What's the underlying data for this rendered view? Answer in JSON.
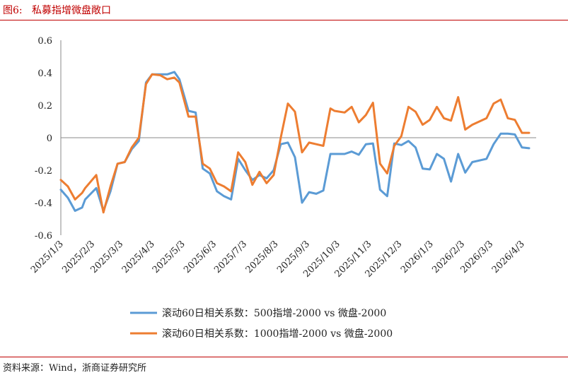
{
  "header": {
    "figure_label": "图6:",
    "title": "私募指增微盘敞口"
  },
  "footer": {
    "source": "资料来源：Wind，浙商证券研究所"
  },
  "chart_data": {
    "type": "line",
    "title": "私募指增微盘敞口",
    "xlabel": "",
    "ylabel": "",
    "ylim": [
      -0.6,
      0.6
    ],
    "yticks": [
      -0.6,
      -0.4,
      -0.2,
      0,
      0.2,
      0.4,
      0.6
    ],
    "ytick_labels": [
      "-0.6",
      "-0.4",
      "-0.2",
      "0",
      "0.2",
      "0.4",
      "0.6"
    ],
    "xtick_labels": [
      "2025/1/3",
      "2025/2/3",
      "2025/3/3",
      "2025/4/3",
      "2025/5/3",
      "2025/6/3",
      "2025/7/3",
      "2025/8/3",
      "2025/9/3",
      "2025/10/3",
      "2025/11/3",
      "2025/12/3",
      "2026/1/3",
      "2026/2/3",
      "2026/3/3",
      "2026/4/3"
    ],
    "x_range": [
      "2025-01-03",
      "2026-04-17"
    ],
    "grid": false,
    "legend_position": "bottom",
    "colors": {
      "series1": "#5b9bd5",
      "series2": "#ed7d31"
    },
    "series": [
      {
        "name": "滚动60日相关系数：500指增-2000 vs 微盘-2000",
        "points": [
          [
            "2025-01-03",
            -0.32
          ],
          [
            "2025-01-10",
            -0.37
          ],
          [
            "2025-01-17",
            -0.45
          ],
          [
            "2025-01-24",
            -0.43
          ],
          [
            "2025-01-27",
            -0.38
          ],
          [
            "2025-02-07",
            -0.31
          ],
          [
            "2025-02-14",
            -0.45
          ],
          [
            "2025-02-21",
            -0.33
          ],
          [
            "2025-02-28",
            -0.16
          ],
          [
            "2025-03-07",
            -0.15
          ],
          [
            "2025-03-14",
            -0.07
          ],
          [
            "2025-03-21",
            -0.02
          ],
          [
            "2025-03-28",
            0.34
          ],
          [
            "2025-04-03",
            0.39
          ],
          [
            "2025-04-11",
            0.39
          ],
          [
            "2025-04-18",
            0.39
          ],
          [
            "2025-04-25",
            0.405
          ],
          [
            "2025-04-30",
            0.36
          ],
          [
            "2025-05-09",
            0.165
          ],
          [
            "2025-05-16",
            0.155
          ],
          [
            "2025-05-23",
            -0.19
          ],
          [
            "2025-05-30",
            -0.22
          ],
          [
            "2025-06-06",
            -0.33
          ],
          [
            "2025-06-13",
            -0.36
          ],
          [
            "2025-06-20",
            -0.38
          ],
          [
            "2025-06-27",
            -0.13
          ],
          [
            "2025-07-04",
            -0.2
          ],
          [
            "2025-07-11",
            -0.26
          ],
          [
            "2025-07-18",
            -0.23
          ],
          [
            "2025-07-25",
            -0.25
          ],
          [
            "2025-08-01",
            -0.2
          ],
          [
            "2025-08-08",
            -0.04
          ],
          [
            "2025-08-15",
            -0.03
          ],
          [
            "2025-08-22",
            -0.12
          ],
          [
            "2025-08-29",
            -0.4
          ],
          [
            "2025-09-05",
            -0.335
          ],
          [
            "2025-09-12",
            -0.345
          ],
          [
            "2025-09-19",
            -0.325
          ],
          [
            "2025-09-26",
            -0.1
          ],
          [
            "2025-09-30",
            -0.1
          ],
          [
            "2025-10-10",
            -0.1
          ],
          [
            "2025-10-17",
            -0.085
          ],
          [
            "2025-10-24",
            -0.105
          ],
          [
            "2025-10-31",
            -0.04
          ],
          [
            "2025-11-07",
            -0.035
          ],
          [
            "2025-11-14",
            -0.32
          ],
          [
            "2025-11-21",
            -0.36
          ],
          [
            "2025-11-28",
            -0.035
          ],
          [
            "2025-12-05",
            -0.045
          ],
          [
            "2025-12-12",
            -0.02
          ],
          [
            "2025-12-19",
            -0.06
          ],
          [
            "2025-12-26",
            -0.19
          ],
          [
            "2026-01-02",
            -0.195
          ],
          [
            "2026-01-09",
            -0.1
          ],
          [
            "2026-01-16",
            -0.13
          ],
          [
            "2026-01-23",
            -0.27
          ],
          [
            "2026-01-30",
            -0.1
          ],
          [
            "2026-02-06",
            -0.215
          ],
          [
            "2026-02-13",
            -0.15
          ],
          [
            "2026-02-27",
            -0.13
          ],
          [
            "2026-03-06",
            -0.04
          ],
          [
            "2026-03-13",
            0.025
          ],
          [
            "2026-03-20",
            0.025
          ],
          [
            "2026-03-27",
            0.02
          ],
          [
            "2026-04-03",
            -0.06
          ],
          [
            "2026-04-10",
            -0.065
          ]
        ]
      },
      {
        "name": "滚动60日相关系数：1000指增-2000 vs 微盘-2000",
        "points": [
          [
            "2025-01-03",
            -0.26
          ],
          [
            "2025-01-10",
            -0.3
          ],
          [
            "2025-01-17",
            -0.38
          ],
          [
            "2025-01-24",
            -0.34
          ],
          [
            "2025-01-27",
            -0.31
          ],
          [
            "2025-02-07",
            -0.23
          ],
          [
            "2025-02-14",
            -0.46
          ],
          [
            "2025-02-21",
            -0.3
          ],
          [
            "2025-02-28",
            -0.16
          ],
          [
            "2025-03-07",
            -0.15
          ],
          [
            "2025-03-14",
            -0.06
          ],
          [
            "2025-03-21",
            0.0
          ],
          [
            "2025-03-28",
            0.33
          ],
          [
            "2025-04-03",
            0.39
          ],
          [
            "2025-04-11",
            0.385
          ],
          [
            "2025-04-18",
            0.36
          ],
          [
            "2025-04-25",
            0.37
          ],
          [
            "2025-04-30",
            0.34
          ],
          [
            "2025-05-09",
            0.13
          ],
          [
            "2025-05-16",
            0.13
          ],
          [
            "2025-05-23",
            -0.16
          ],
          [
            "2025-05-30",
            -0.19
          ],
          [
            "2025-06-06",
            -0.28
          ],
          [
            "2025-06-13",
            -0.3
          ],
          [
            "2025-06-20",
            -0.33
          ],
          [
            "2025-06-27",
            -0.09
          ],
          [
            "2025-07-04",
            -0.15
          ],
          [
            "2025-07-11",
            -0.29
          ],
          [
            "2025-07-18",
            -0.21
          ],
          [
            "2025-07-25",
            -0.28
          ],
          [
            "2025-08-01",
            -0.23
          ],
          [
            "2025-08-08",
            0.0
          ],
          [
            "2025-08-15",
            0.21
          ],
          [
            "2025-08-22",
            0.16
          ],
          [
            "2025-08-29",
            -0.09
          ],
          [
            "2025-09-05",
            -0.03
          ],
          [
            "2025-09-12",
            -0.04
          ],
          [
            "2025-09-19",
            -0.05
          ],
          [
            "2025-09-26",
            0.18
          ],
          [
            "2025-09-30",
            0.165
          ],
          [
            "2025-10-10",
            0.155
          ],
          [
            "2025-10-17",
            0.19
          ],
          [
            "2025-10-24",
            0.095
          ],
          [
            "2025-10-31",
            0.14
          ],
          [
            "2025-11-07",
            0.215
          ],
          [
            "2025-11-14",
            -0.16
          ],
          [
            "2025-11-21",
            -0.22
          ],
          [
            "2025-11-28",
            -0.05
          ],
          [
            "2025-12-05",
            0.01
          ],
          [
            "2025-12-12",
            0.19
          ],
          [
            "2025-12-19",
            0.16
          ],
          [
            "2025-12-26",
            0.08
          ],
          [
            "2026-01-02",
            0.11
          ],
          [
            "2026-01-09",
            0.19
          ],
          [
            "2026-01-16",
            0.12
          ],
          [
            "2026-01-23",
            0.105
          ],
          [
            "2026-01-30",
            0.25
          ],
          [
            "2026-02-06",
            0.05
          ],
          [
            "2026-02-13",
            0.08
          ],
          [
            "2026-02-27",
            0.12
          ],
          [
            "2026-03-06",
            0.21
          ],
          [
            "2026-03-13",
            0.235
          ],
          [
            "2026-03-20",
            0.12
          ],
          [
            "2026-03-27",
            0.11
          ],
          [
            "2026-04-03",
            0.03
          ],
          [
            "2026-04-10",
            0.03
          ]
        ]
      }
    ]
  }
}
